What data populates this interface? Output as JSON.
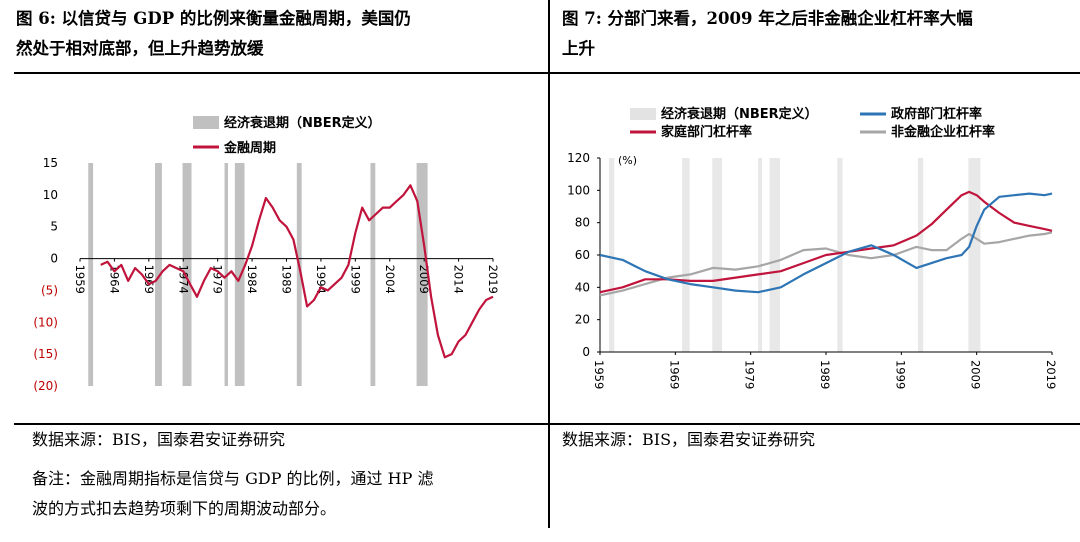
{
  "left": {
    "title_line1": "图 6:   以信贷与 GDP 的比例来衡量金融周期，美国仍",
    "title_line2": "然处于相对底部，但上升趋势放缓",
    "source": "数据来源：BIS，国泰君安证券研究",
    "note_line1": "备注：金融周期指标是信贷与 GDP 的比例，通过 HP 滤",
    "note_line2": "波的方式扣去趋势项剩下的周期波动部分。"
  },
  "right": {
    "title_line1": "图 7:  分部门来看，2009 年之后非金融企业杠杆率大幅",
    "title_line2": "上升",
    "source": "数据来源：BIS，国泰君安证券研究"
  },
  "colors": {
    "recession": "#c0c0c0",
    "red": "#c0143c",
    "blue": "#2e75b6",
    "gray": "#a6a6a6",
    "neg_tick": "#c00000"
  },
  "chart_data": [
    {
      "type": "line",
      "legend": [
        "经济衰退期（NBER定义）",
        "金融周期"
      ],
      "y_tick_labels": [
        "15",
        "10",
        "5",
        "0",
        "(5)",
        "(10)",
        "(15)",
        "(20)"
      ],
      "x_tick_labels": [
        "1959",
        "1964",
        "1969",
        "1974",
        "1979",
        "1984",
        "1989",
        "1994",
        "1999",
        "2004",
        "2009",
        "2014",
        "2019"
      ],
      "ylim": [
        -20,
        15
      ],
      "xlim": [
        1959,
        2019
      ],
      "recessions": [
        [
          1960.2,
          1960.9
        ],
        [
          1969.9,
          1970.9
        ],
        [
          1973.9,
          1975.2
        ],
        [
          1980.0,
          1980.5
        ],
        [
          1981.5,
          1982.9
        ],
        [
          1990.5,
          1991.2
        ],
        [
          2001.2,
          2001.9
        ],
        [
          2007.9,
          2009.5
        ]
      ],
      "series": [
        {
          "name": "金融周期",
          "x": [
            1962,
            1963,
            1964,
            1965,
            1966,
            1967,
            1968,
            1969,
            1970,
            1971,
            1972,
            1973,
            1974,
            1975,
            1976,
            1977,
            1978,
            1979,
            1980,
            1981,
            1982,
            1983,
            1984,
            1985,
            1986,
            1987,
            1988,
            1989,
            1990,
            1991,
            1992,
            1993,
            1994,
            1995,
            1996,
            1997,
            1998,
            1999,
            2000,
            2001,
            2002,
            2003,
            2004,
            2005,
            2006,
            2007,
            2008,
            2009,
            2010,
            2011,
            2012,
            2013,
            2014,
            2015,
            2016,
            2017,
            2018,
            2019
          ],
          "values": [
            -1,
            -0.5,
            -2,
            -1,
            -3.5,
            -1.5,
            -2.5,
            -4,
            -3.5,
            -2,
            -1,
            -1.5,
            -2,
            -4,
            -6,
            -3.5,
            -1.5,
            -2,
            -3,
            -2,
            -3.5,
            -1,
            2,
            6,
            9.5,
            8,
            6,
            5,
            3,
            -2,
            -7.5,
            -6.5,
            -4.5,
            -5,
            -4,
            -3,
            -1,
            4,
            8,
            6,
            7,
            8,
            8,
            9,
            10,
            11.5,
            9,
            2,
            -6,
            -12,
            -15.5,
            -15,
            -13,
            -12,
            -10,
            -8,
            -6.5,
            -6
          ]
        }
      ]
    },
    {
      "type": "line",
      "legend": [
        "经济衰退期（NBER定义）",
        "政府部门杠杆率",
        "家庭部门杠杆率",
        "非金融企业杠杆率"
      ],
      "y_tick_labels": [
        "120",
        "100",
        "80",
        "60",
        "40",
        "20",
        "0"
      ],
      "y_unit": "(%)",
      "x_tick_labels": [
        "1959",
        "1969",
        "1979",
        "1989",
        "1999",
        "2009",
        "2019"
      ],
      "ylim": [
        0,
        120
      ],
      "xlim": [
        1959,
        2019
      ],
      "recessions": [
        [
          1960.2,
          1960.9
        ],
        [
          1969.9,
          1970.9
        ],
        [
          1973.9,
          1975.2
        ],
        [
          1980.0,
          1980.5
        ],
        [
          1981.5,
          1982.9
        ],
        [
          1990.5,
          1991.2
        ],
        [
          2001.2,
          2001.9
        ],
        [
          2007.9,
          2009.5
        ]
      ],
      "series": [
        {
          "name": "政府部门杠杆率",
          "x": [
            1959,
            1962,
            1965,
            1968,
            1971,
            1974,
            1977,
            1980,
            1983,
            1986,
            1989,
            1992,
            1995,
            1998,
            2001,
            2003,
            2005,
            2007,
            2008,
            2009,
            2010,
            2012,
            2014,
            2016,
            2018,
            2019
          ],
          "values": [
            60,
            57,
            50,
            45,
            42,
            40,
            38,
            37,
            40,
            48,
            55,
            62,
            66,
            60,
            52,
            55,
            58,
            60,
            65,
            78,
            88,
            96,
            97,
            98,
            97,
            98
          ]
        },
        {
          "name": "家庭部门杠杆率",
          "x": [
            1959,
            1962,
            1965,
            1968,
            1971,
            1974,
            1977,
            1980,
            1983,
            1986,
            1989,
            1992,
            1995,
            1998,
            2001,
            2003,
            2005,
            2007,
            2008,
            2009,
            2010,
            2012,
            2014,
            2016,
            2018,
            2019
          ],
          "values": [
            37,
            40,
            45,
            45,
            44,
            44,
            46,
            48,
            50,
            55,
            60,
            62,
            64,
            66,
            72,
            79,
            88,
            97,
            99,
            97,
            93,
            86,
            80,
            78,
            76,
            75
          ]
        },
        {
          "name": "非金融企业杠杆率",
          "x": [
            1959,
            1962,
            1965,
            1968,
            1971,
            1974,
            1977,
            1980,
            1983,
            1986,
            1989,
            1992,
            1995,
            1998,
            2001,
            2003,
            2005,
            2007,
            2008,
            2009,
            2010,
            2012,
            2014,
            2016,
            2018,
            2019
          ],
          "values": [
            35,
            38,
            42,
            46,
            48,
            52,
            51,
            53,
            57,
            63,
            64,
            60,
            58,
            60,
            65,
            63,
            63,
            70,
            73,
            70,
            67,
            68,
            70,
            72,
            73,
            74
          ]
        }
      ]
    }
  ]
}
